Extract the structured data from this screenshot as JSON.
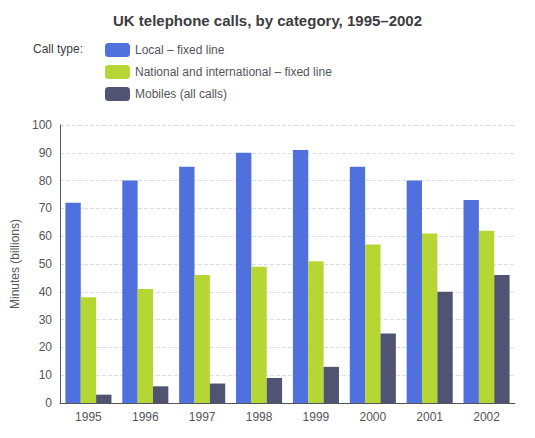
{
  "chart_data": {
    "type": "bar",
    "title": "UK telephone calls, by category, 1995–2002",
    "ylabel": "Minutes (billions)",
    "legend_title": "Call type:",
    "categories": [
      "1995",
      "1996",
      "1997",
      "1998",
      "1999",
      "2000",
      "2001",
      "2002"
    ],
    "series": [
      {
        "name": "Local – fixed line",
        "values": [
          72,
          80,
          85,
          90,
          91,
          85,
          80,
          73
        ]
      },
      {
        "name": "National and international – fixed line",
        "values": [
          38,
          41,
          46,
          49,
          51,
          57,
          61,
          62
        ]
      },
      {
        "name": "Mobiles (all calls)",
        "values": [
          3,
          6,
          7,
          9,
          13,
          25,
          40,
          46
        ]
      }
    ],
    "ylim": [
      0,
      100
    ],
    "yticks": [
      0,
      10,
      20,
      30,
      40,
      50,
      60,
      70,
      80,
      90,
      100
    ],
    "grid": true,
    "legend": "upper left"
  }
}
